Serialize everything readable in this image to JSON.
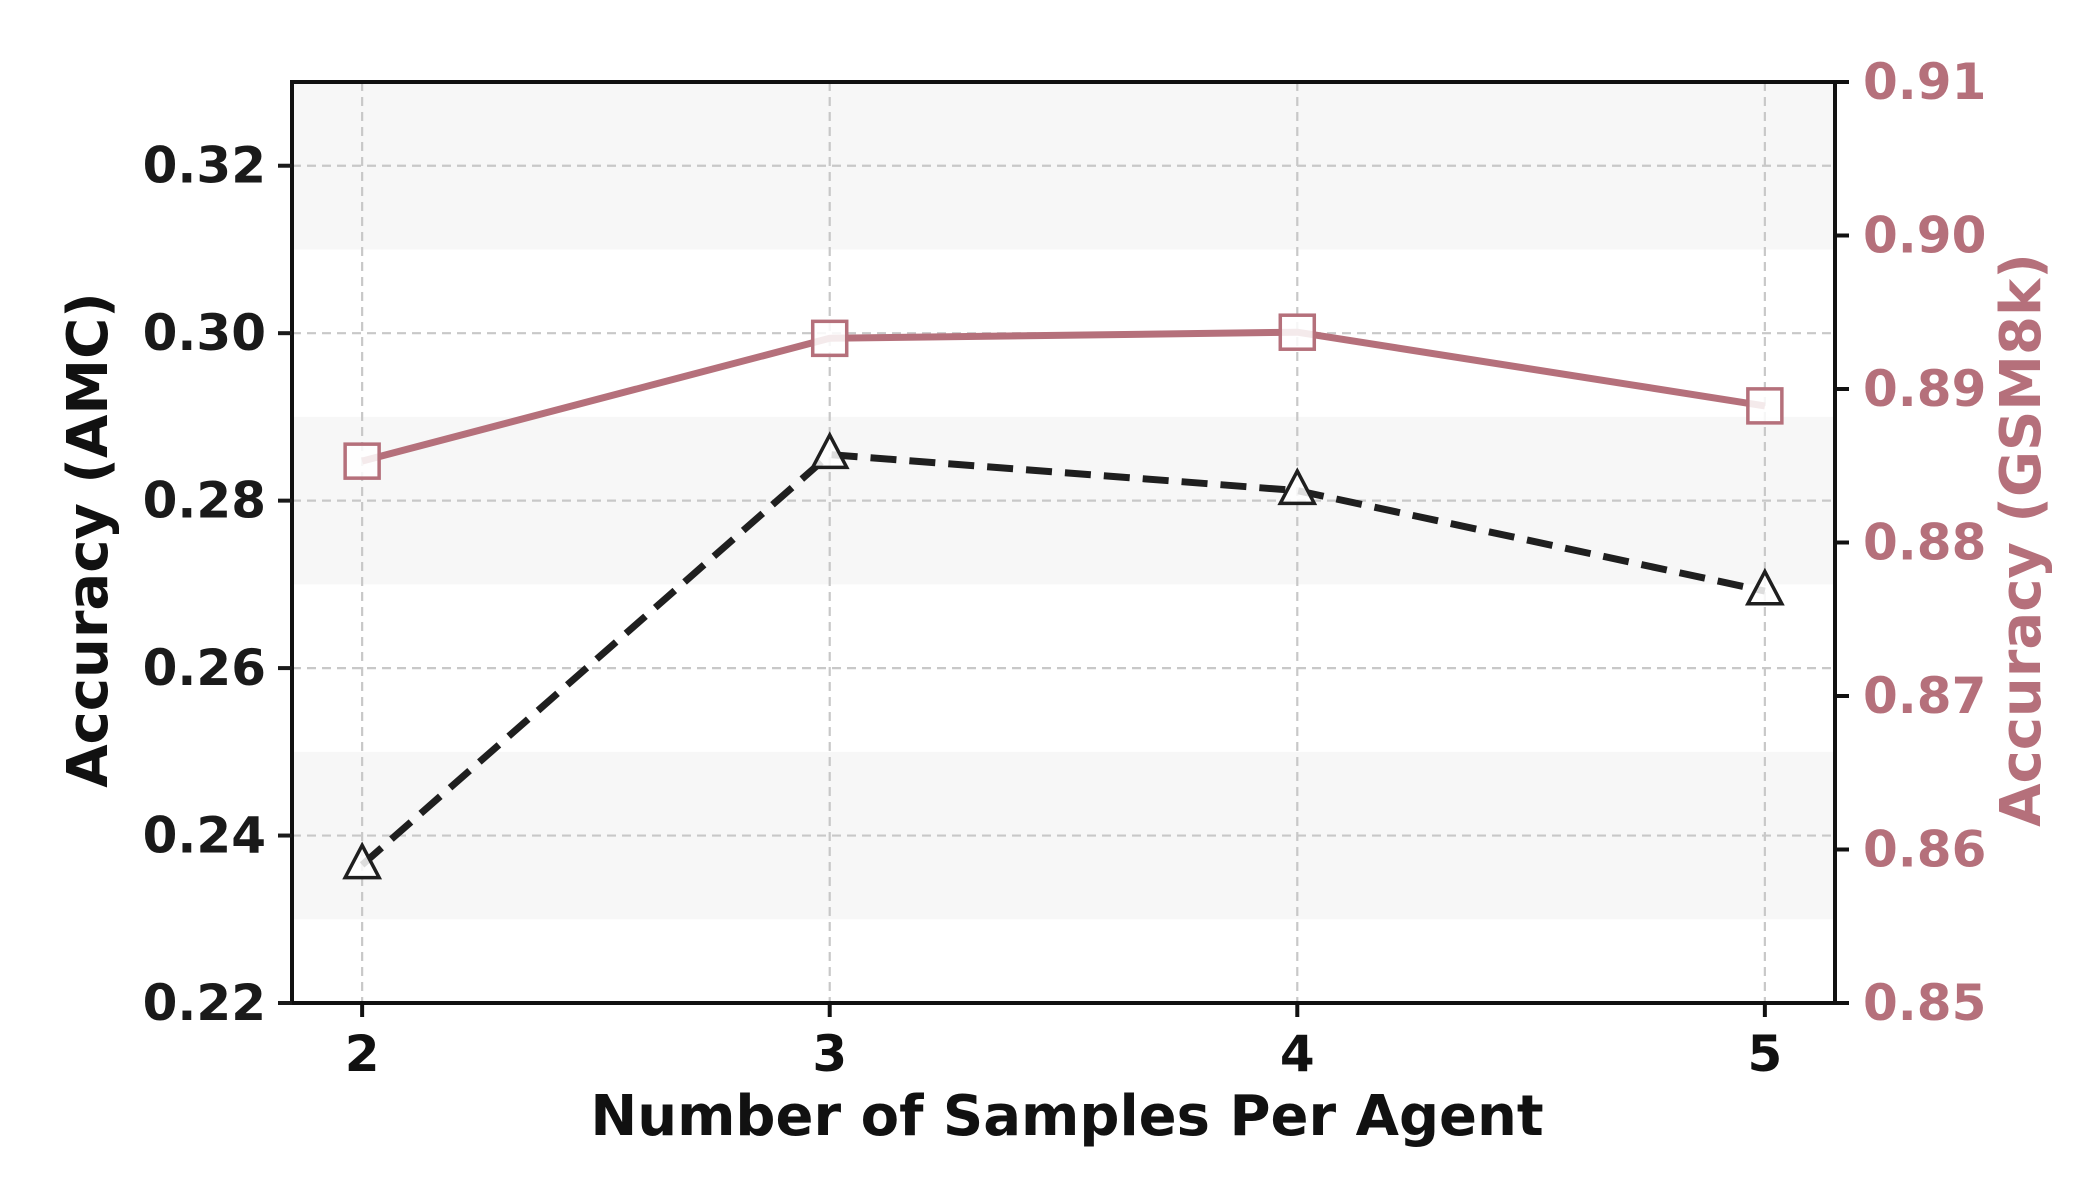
{
  "chart_data": {
    "type": "line",
    "xlabel": "Number of Samples Per Agent",
    "ylabel_left": "Accuracy (AMC)",
    "ylabel_right": "Accuracy (GSM8k)",
    "x": [
      2,
      3,
      4,
      5
    ],
    "x_tick_labels": [
      "2",
      "3",
      "4",
      "5"
    ],
    "xlim": [
      1.85,
      5.15
    ],
    "ylim_left": [
      0.22,
      0.33
    ],
    "ylim_right": [
      0.85,
      0.91
    ],
    "left_ticks": [
      0.22,
      0.24,
      0.26,
      0.28,
      0.3,
      0.32
    ],
    "left_tick_labels": [
      "0.22",
      "0.24",
      "0.26",
      "0.28",
      "0.30",
      "0.32"
    ],
    "right_ticks": [
      0.85,
      0.86,
      0.87,
      0.88,
      0.89,
      0.9,
      0.91
    ],
    "right_tick_labels": [
      "0.85",
      "0.86",
      "0.87",
      "0.88",
      "0.89",
      "0.90",
      "0.91"
    ],
    "background_bands": [
      [
        0.23,
        0.25
      ],
      [
        0.27,
        0.29
      ],
      [
        0.31,
        0.33
      ]
    ],
    "grid": true,
    "series": [
      {
        "axis": "left",
        "values": [
          0.2365,
          0.2855,
          0.2812,
          0.2692
        ],
        "color": "#1f1f1f",
        "line_style": "dashed",
        "marker": "triangle"
      },
      {
        "axis": "right",
        "values": [
          0.8853,
          0.8933,
          0.8937,
          0.8889
        ],
        "color": "#b5707b",
        "line_style": "solid",
        "marker": "square"
      }
    ],
    "colors": {
      "left_axis": "#1a1a1a",
      "right_axis": "#b5707b",
      "band": "#f7f7f7",
      "grid": "#c8c8c8"
    }
  }
}
